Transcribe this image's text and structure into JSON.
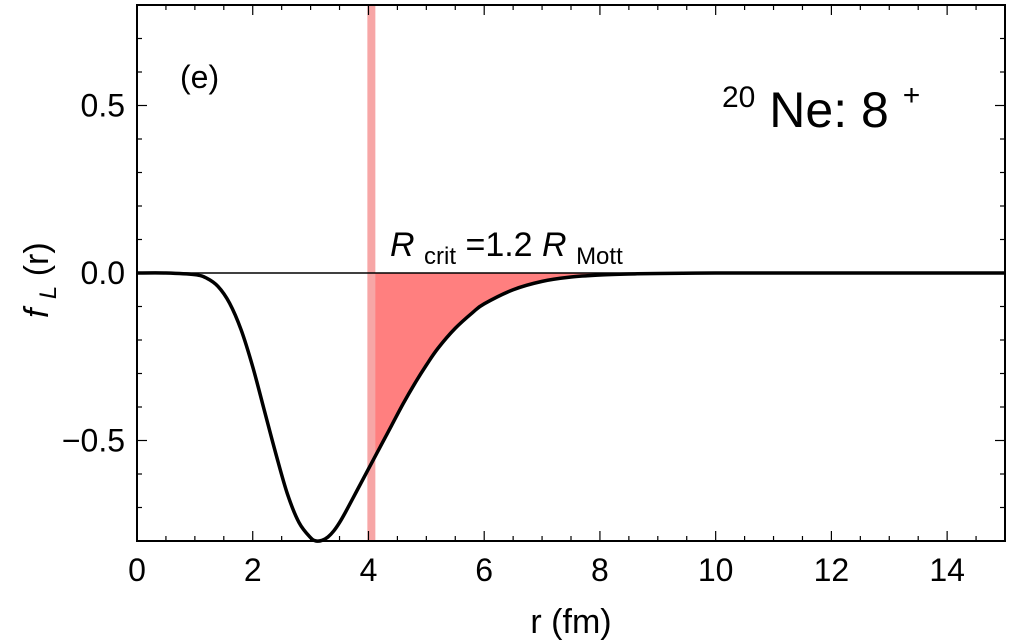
{
  "chart_data": {
    "type": "line",
    "panel_label": "(e)",
    "title": {
      "superscript_mass": "20",
      "element": "Ne: 8",
      "superscript_charge": "+"
    },
    "xlabel": "r (fm)",
    "ylabel": {
      "main": "f",
      "subscript": "L",
      "suffix": "(r)"
    },
    "xlim": [
      0,
      15
    ],
    "ylim": [
      -0.8,
      0.8
    ],
    "xticks": [
      0,
      2,
      4,
      6,
      8,
      10,
      12,
      14
    ],
    "xtick_labels": [
      "0",
      "2",
      "4",
      "6",
      "8",
      "10",
      "12",
      "14"
    ],
    "yticks": [
      -0.5,
      0.0,
      0.5
    ],
    "ytick_labels": [
      "−0.5",
      "0.0",
      "0.5"
    ],
    "critical_radius": 4.05,
    "annotation": {
      "R": "R",
      "crit_sub": "crit",
      "middle": "=1.2 ",
      "R2": "R",
      "mott_sub": "Mott"
    },
    "series": [
      {
        "x": [
          0,
          0.5,
          1.0,
          1.2,
          1.4,
          1.6,
          1.8,
          2.0,
          2.2,
          2.4,
          2.6,
          2.8,
          3.0,
          3.1,
          3.2,
          3.3,
          3.4,
          3.5,
          3.6,
          3.8,
          4.0,
          4.2,
          4.4,
          4.6,
          4.8,
          5.0,
          5.2,
          5.5,
          5.8,
          6.0,
          6.5,
          7.0,
          7.5,
          8.0,
          8.5,
          9.0,
          10.0,
          11.0,
          12.0,
          13.0,
          14.0,
          15.0
        ],
        "y": [
          0.0,
          0.0,
          -0.005,
          -0.015,
          -0.04,
          -0.09,
          -0.17,
          -0.28,
          -0.41,
          -0.54,
          -0.66,
          -0.745,
          -0.79,
          -0.8,
          -0.798,
          -0.788,
          -0.77,
          -0.745,
          -0.715,
          -0.65,
          -0.585,
          -0.52,
          -0.455,
          -0.39,
          -0.33,
          -0.275,
          -0.225,
          -0.165,
          -0.118,
          -0.092,
          -0.05,
          -0.025,
          -0.012,
          -0.006,
          -0.003,
          -0.0015,
          0.0,
          0.0,
          0.0,
          0.0,
          0.0,
          0.0
        ]
      }
    ],
    "colors": {
      "curve": "#000000",
      "shade": "#ff7f7f",
      "critical_line": "#f7a6a6"
    }
  }
}
